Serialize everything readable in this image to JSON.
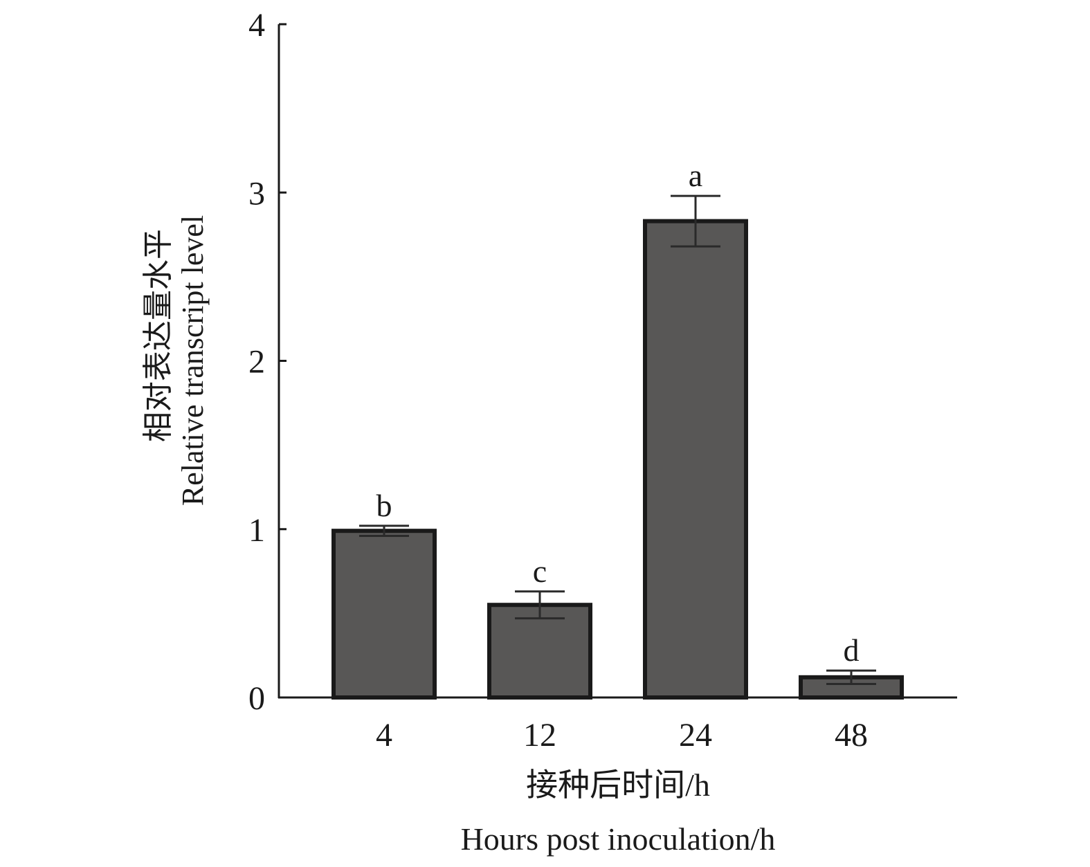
{
  "chart_data": {
    "type": "bar",
    "ylabel": [
      "相对表达量水平",
      "Relative transcript level"
    ],
    "xlabel": [
      "接种后时间/h",
      "Hours post inoculation/h"
    ],
    "categories": [
      "4",
      "12",
      "24",
      "48"
    ],
    "values": [
      0.99,
      0.55,
      2.83,
      0.12
    ],
    "errors": [
      0.03,
      0.08,
      0.15,
      0.04
    ],
    "significance_labels": [
      "b",
      "c",
      "a",
      "d"
    ],
    "color": "#585756",
    "ylim": [
      0,
      4
    ],
    "yticks": [
      0,
      1,
      2,
      3,
      4
    ]
  }
}
